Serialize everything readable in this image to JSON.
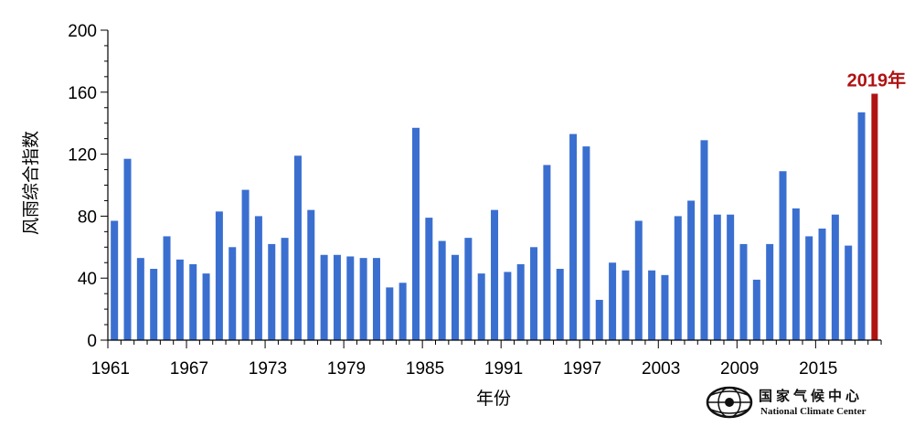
{
  "chart_data": {
    "type": "bar",
    "title": "",
    "xlabel": "年份",
    "ylabel": "风雨综合指数",
    "ylim": [
      0,
      200
    ],
    "yticks": [
      "0",
      "40",
      "80",
      "120",
      "160",
      "200"
    ],
    "xtick_labels": [
      "1961",
      "1967",
      "1973",
      "1979",
      "1985",
      "1991",
      "1997",
      "2003",
      "2009",
      "2015"
    ],
    "categories": [
      "1961",
      "1962",
      "1963",
      "1964",
      "1965",
      "1966",
      "1967",
      "1968",
      "1969",
      "1970",
      "1971",
      "1972",
      "1973",
      "1974",
      "1975",
      "1976",
      "1977",
      "1978",
      "1979",
      "1980",
      "1981",
      "1982",
      "1983",
      "1984",
      "1985",
      "1986",
      "1987",
      "1988",
      "1989",
      "1990",
      "1991",
      "1992",
      "1993",
      "1994",
      "1995",
      "1996",
      "1997",
      "1998",
      "1999",
      "2000",
      "2001",
      "2002",
      "2003",
      "2004",
      "2005",
      "2006",
      "2007",
      "2008",
      "2009",
      "2010",
      "2011",
      "2012",
      "2013",
      "2014",
      "2015",
      "2016",
      "2017",
      "2018",
      "2019"
    ],
    "values": [
      77,
      117,
      53,
      46,
      67,
      52,
      49,
      43,
      83,
      60,
      97,
      80,
      62,
      66,
      119,
      84,
      55,
      55,
      54,
      53,
      53,
      34,
      37,
      137,
      79,
      64,
      55,
      66,
      43,
      84,
      44,
      49,
      60,
      113,
      46,
      133,
      125,
      26,
      50,
      45,
      77,
      45,
      42,
      80,
      90,
      129,
      81,
      81,
      62,
      39,
      62,
      109,
      85,
      67,
      72,
      81,
      61,
      147,
      159
    ],
    "highlight": {
      "category": "2019",
      "label": "2019年",
      "color": "#b01212"
    },
    "bar_color": "#3a6fd0",
    "grid": false,
    "legend": "none"
  },
  "logo": {
    "name_zh": "国家气候中心",
    "name_en": "National Climate Center"
  }
}
